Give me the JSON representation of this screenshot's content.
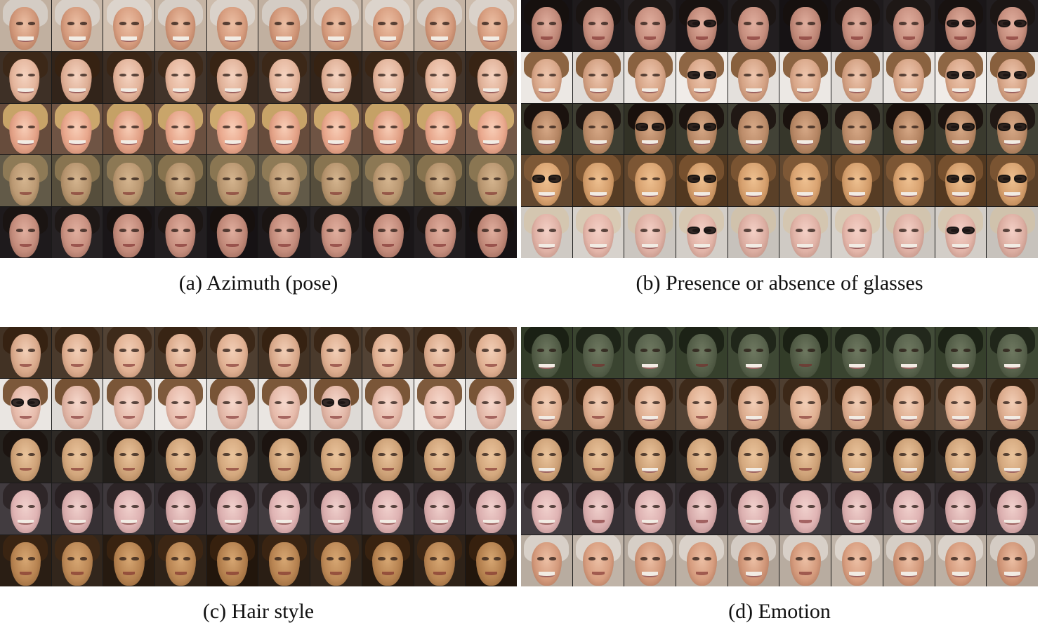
{
  "panels": [
    {
      "id": "a",
      "caption": "(a) Azimuth (pose)",
      "subjects": [
        {
          "bg": "#c9b8a8",
          "hair": "#d8d0c8",
          "skin": "#d49a7c",
          "skinHi": "#ecbfa4",
          "skinLo": "#a36a50",
          "smile": true
        },
        {
          "bg": "#3a2c22",
          "hair": "#3a2616",
          "skin": "#e2b39a",
          "skinHi": "#f5d3c0",
          "skinLo": "#b47e64",
          "smile": true
        },
        {
          "bg": "#6b5040",
          "hair": "#c9a56a",
          "skin": "#e6a58a",
          "skinHi": "#f8cdb6",
          "skinLo": "#b8765e",
          "smile": true
        },
        {
          "bg": "#5a5240",
          "hair": "#8a7652",
          "skin": "#b89670",
          "skinHi": "#d4b48e",
          "skinLo": "#846844",
          "smile": false
        },
        {
          "bg": "#1e1a1c",
          "hair": "#1a1412",
          "skin": "#c48c7c",
          "skinHi": "#e0ae9e",
          "skinLo": "#8a5a4c",
          "smile": false
        }
      ],
      "glasses_cols": []
    },
    {
      "id": "b",
      "caption": "(b) Presence or absence of glasses",
      "subjects": [
        {
          "bg": "#1e1a1c",
          "hair": "#1a1412",
          "skin": "#c48c7c",
          "skinHi": "#e0ae9e",
          "skinLo": "#8a5a4c",
          "smile": false
        },
        {
          "bg": "#e8e4e0",
          "hair": "#8a6240",
          "skin": "#d6a486",
          "skinHi": "#eec6ae",
          "skinLo": "#a47258",
          "smile": true
        },
        {
          "bg": "#3a3a2e",
          "hair": "#1c1410",
          "skin": "#b88866",
          "skinHi": "#d6a886",
          "skinLo": "#86603e",
          "smile": true
        },
        {
          "bg": "#5a4028",
          "hair": "#7a5432",
          "skin": "#d6a06e",
          "skinHi": "#eec090",
          "skinLo": "#a4703e",
          "smile": true
        },
        {
          "bg": "#cfcac4",
          "hair": "#d4c6b0",
          "skin": "#e0b2a6",
          "skinHi": "#f4d0c6",
          "skinLo": "#b08274",
          "smile": true
        }
      ],
      "glasses_cols": [
        3,
        8,
        9
      ]
    },
    {
      "id": "c",
      "caption": "(c) Hair style",
      "subjects": [
        {
          "bg": "#4a3a2c",
          "hair": "#3a2616",
          "skin": "#deae90",
          "skinHi": "#f2ceb6",
          "skinLo": "#aa7a5e",
          "smile": false
        },
        {
          "bg": "#e6e2de",
          "hair": "#7a5638",
          "skin": "#e4b8a8",
          "skinHi": "#f6d8cc",
          "skinLo": "#b48878",
          "smile": false
        },
        {
          "bg": "#2a2622",
          "hair": "#1e1612",
          "skin": "#d0a47a",
          "skinHi": "#eac49c",
          "skinLo": "#9c724c",
          "smile": false
        },
        {
          "bg": "#3a3438",
          "hair": "#2a2224",
          "skin": "#dcb0b0",
          "skinHi": "#f0d0cc",
          "skinLo": "#aa8080",
          "smile": true
        },
        {
          "bg": "#2a1e14",
          "hair": "#3a2412",
          "skin": "#b88452",
          "skinHi": "#d6a672",
          "skinLo": "#865a30",
          "smile": false
        }
      ],
      "glasses_cols": []
    },
    {
      "id": "d",
      "caption": "(d) Emotion",
      "subjects": [
        {
          "bg": "#3a4430",
          "hair": "#1e2418",
          "skin": "#56604a",
          "skinHi": "#6e7860",
          "skinLo": "#3a4230",
          "smile": false
        },
        {
          "bg": "#4a3a2c",
          "hair": "#3a2616",
          "skin": "#deae90",
          "skinHi": "#f2ceb6",
          "skinLo": "#aa7a5e",
          "smile": true
        },
        {
          "bg": "#2a2622",
          "hair": "#1e1612",
          "skin": "#d0a47a",
          "skinHi": "#eac49c",
          "skinLo": "#9c724c",
          "smile": true
        },
        {
          "bg": "#3a3438",
          "hair": "#2a2224",
          "skin": "#dcb0b0",
          "skinHi": "#f0d0cc",
          "skinLo": "#aa8080",
          "smile": true
        },
        {
          "bg": "#b8aca0",
          "hair": "#d8d0c8",
          "skin": "#d49a7c",
          "skinHi": "#ecbfa4",
          "skinLo": "#a36a50",
          "smile": true
        }
      ],
      "glasses_cols": []
    }
  ],
  "glasses_rows_b": {
    "0": [
      3,
      8,
      9
    ],
    "1": [
      3,
      8,
      9
    ],
    "2": [
      2,
      3,
      8,
      9
    ],
    "3": [
      0,
      3,
      8,
      9
    ],
    "4": [
      3,
      8
    ]
  },
  "glasses_rows_c": {
    "1": [
      0,
      6
    ]
  }
}
